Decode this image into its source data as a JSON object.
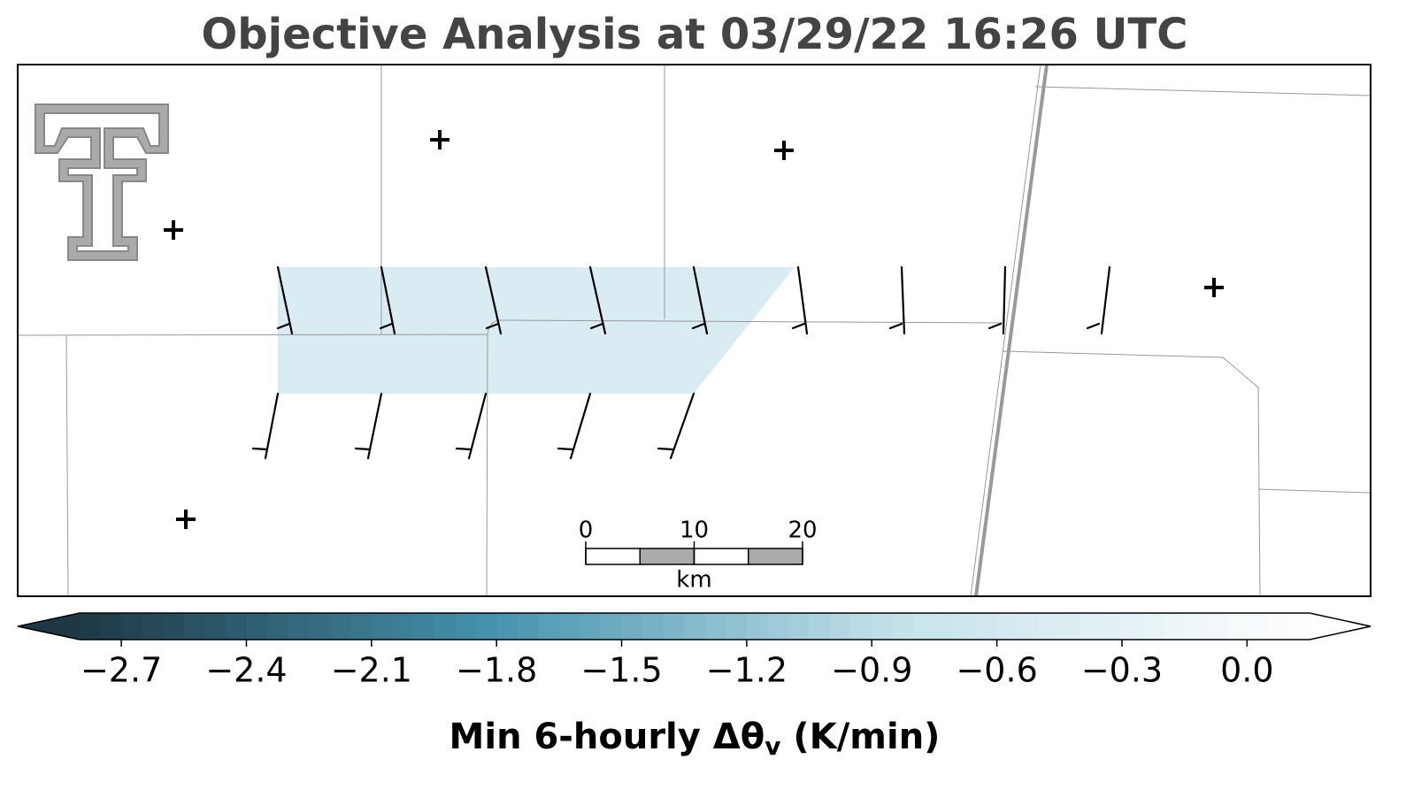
{
  "title": "Objective Analysis at 03/29/22 16:26 UTC",
  "colorbar": {
    "lim": [
      -2.8,
      0.15
    ],
    "ticks": [
      {
        "value": -2.7,
        "label": "−2.7"
      },
      {
        "value": -2.4,
        "label": "−2.4"
      },
      {
        "value": -2.1,
        "label": "−2.1"
      },
      {
        "value": -1.8,
        "label": "−1.8"
      },
      {
        "value": -1.5,
        "label": "−1.5"
      },
      {
        "value": -1.2,
        "label": "−1.2"
      },
      {
        "value": -0.9,
        "label": "−0.9"
      },
      {
        "value": -0.6,
        "label": "−0.6"
      },
      {
        "value": -0.3,
        "label": "−0.3"
      },
      {
        "value": 0,
        "label": "0.0"
      }
    ],
    "colors": [
      "#1e3945",
      "#4592ad",
      "#c4e2eb",
      "#ffffff"
    ],
    "label": {
      "main": "Min 6-hourly Δθ",
      "sub": "v",
      "unit": " (K/min)"
    }
  },
  "scalebar": {
    "lim": [
      0,
      20
    ],
    "ticks": [
      0,
      10,
      20
    ],
    "unit": "km"
  }
}
